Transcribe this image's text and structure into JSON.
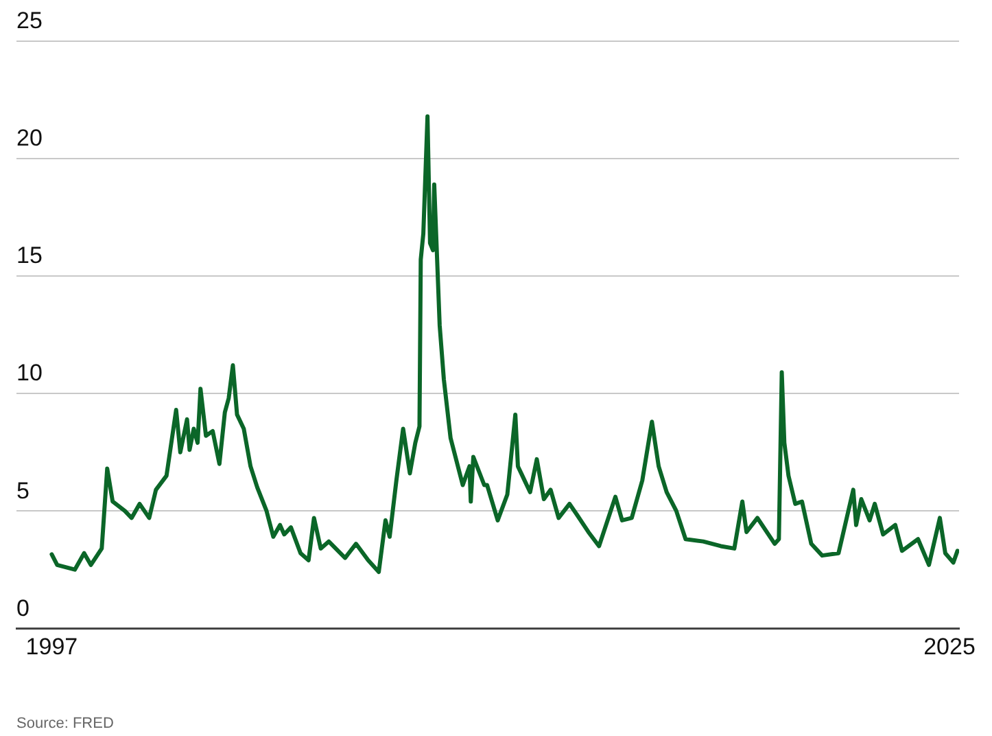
{
  "chart_data": {
    "type": "line",
    "annotations": [
      "Source: FRED"
    ],
    "x": [
      1997.0,
      1997.17,
      1997.72,
      1998.01,
      1998.22,
      1998.56,
      1998.73,
      1998.9,
      1999.28,
      1999.49,
      1999.74,
      2000.04,
      2000.25,
      2000.58,
      2000.88,
      2001.01,
      2001.22,
      2001.3,
      2001.43,
      2001.55,
      2001.64,
      2001.81,
      2002.02,
      2002.23,
      2002.4,
      2002.52,
      2002.65,
      2002.78,
      2002.99,
      2003.2,
      2003.41,
      2003.7,
      2003.91,
      2004.12,
      2004.25,
      2004.46,
      2004.76,
      2005.01,
      2005.18,
      2005.39,
      2005.64,
      2006.15,
      2006.49,
      2006.87,
      2007.2,
      2007.41,
      2007.54,
      2007.75,
      2007.96,
      2008.17,
      2008.34,
      2008.47,
      2008.51,
      2008.59,
      2008.72,
      2008.8,
      2008.89,
      2008.93,
      2009.1,
      2009.23,
      2009.44,
      2009.82,
      2010.03,
      2010.07,
      2010.15,
      2010.49,
      2010.58,
      2010.91,
      2011.21,
      2011.46,
      2011.54,
      2011.92,
      2012.13,
      2012.35,
      2012.56,
      2012.81,
      2013.15,
      2013.4,
      2013.74,
      2014.07,
      2014.58,
      2014.79,
      2015.09,
      2015.42,
      2015.72,
      2015.93,
      2016.18,
      2016.48,
      2016.77,
      2017.32,
      2017.87,
      2018.29,
      2018.54,
      2018.67,
      2019.01,
      2019.55,
      2019.68,
      2019.77,
      2019.85,
      2019.98,
      2020.19,
      2020.4,
      2020.69,
      2021.03,
      2021.54,
      2021.66,
      2022.0,
      2022.09,
      2022.25,
      2022.51,
      2022.67,
      2022.93,
      2023.31,
      2023.52,
      2024.02,
      2024.36,
      2024.7,
      2024.87,
      2025.12,
      2025.25
    ],
    "series": [
      {
        "color": "#0b6628",
        "values": [
          3.15,
          2.7,
          2.5,
          3.2,
          2.7,
          3.4,
          6.8,
          5.4,
          5.0,
          4.7,
          5.3,
          4.7,
          5.9,
          6.5,
          9.3,
          7.5,
          8.9,
          7.6,
          8.5,
          7.9,
          10.2,
          8.2,
          8.4,
          7.0,
          9.2,
          9.8,
          11.2,
          9.1,
          8.5,
          6.9,
          6.0,
          5.0,
          3.9,
          4.4,
          4.0,
          4.3,
          3.2,
          2.9,
          4.7,
          3.4,
          3.7,
          3.0,
          3.6,
          2.9,
          2.4,
          4.6,
          3.9,
          6.3,
          8.5,
          6.6,
          7.9,
          8.6,
          15.7,
          16.8,
          21.8,
          16.4,
          16.1,
          18.9,
          12.9,
          10.6,
          8.1,
          6.1,
          6.9,
          5.4,
          7.3,
          6.1,
          6.1,
          4.6,
          5.7,
          9.1,
          6.9,
          5.8,
          7.2,
          5.5,
          5.9,
          4.7,
          5.3,
          4.8,
          4.1,
          3.5,
          5.6,
          4.6,
          4.7,
          6.3,
          8.8,
          6.9,
          5.8,
          5.0,
          3.8,
          3.7,
          3.5,
          3.4,
          5.4,
          4.1,
          4.7,
          3.6,
          3.8,
          10.9,
          7.9,
          6.5,
          5.3,
          5.4,
          3.6,
          3.1,
          3.2,
          3.9,
          5.9,
          4.4,
          5.5,
          4.6,
          5.3,
          4.0,
          4.4,
          3.3,
          3.8,
          2.7,
          4.7,
          3.2,
          2.8,
          3.3
        ]
      }
    ],
    "xlim": [
      1995.9,
      2025.3
    ],
    "xticks": [
      1997,
      2025
    ],
    "ylim": [
      0,
      25
    ],
    "yticks": [
      0,
      5,
      10,
      15,
      20,
      25
    ],
    "grid": "y",
    "legend": false,
    "marker": "none",
    "line_style": "solid"
  }
}
